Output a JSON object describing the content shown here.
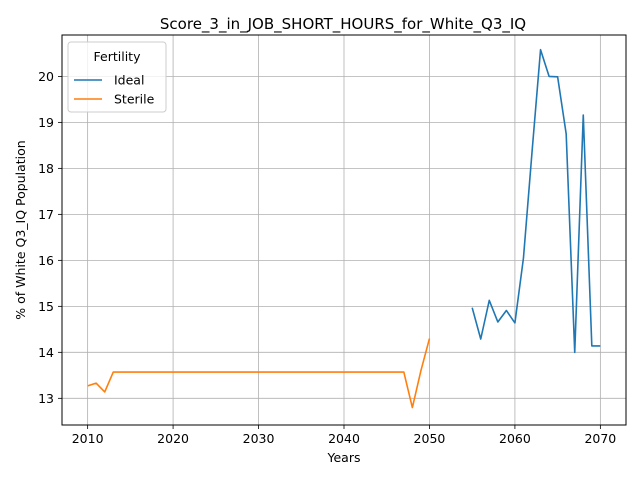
{
  "chart_data": {
    "type": "line",
    "title": "Score_3_in_JOB_SHORT_HOURS_for_White_Q3_IQ",
    "xlabel": "Years",
    "ylabel": "% of White Q3_IQ Population",
    "xlim": [
      2007,
      2073
    ],
    "ylim": [
      12.42,
      20.9
    ],
    "xticks": [
      2010,
      2020,
      2030,
      2040,
      2050,
      2060,
      2070
    ],
    "yticks": [
      13,
      14,
      15,
      16,
      17,
      18,
      19,
      20
    ],
    "grid": true,
    "legend": {
      "title": "Fertility",
      "placement": "top-left"
    },
    "series": [
      {
        "name": "Ideal",
        "color": "#1f77b4",
        "x": [
          2055,
          2056,
          2057,
          2058,
          2059,
          2060,
          2061,
          2062,
          2063,
          2064,
          2065,
          2066,
          2067,
          2068,
          2069,
          2070
        ],
        "y": [
          14.97,
          14.29,
          15.13,
          14.66,
          14.91,
          14.64,
          16.05,
          18.35,
          20.58,
          20.0,
          19.99,
          18.75,
          14.0,
          19.16,
          14.14,
          14.14
        ]
      },
      {
        "name": "Sterile",
        "color": "#ff7f0e",
        "x": [
          2010,
          2011,
          2012,
          2013,
          2014,
          2015,
          2016,
          2017,
          2018,
          2019,
          2020,
          2021,
          2022,
          2023,
          2024,
          2025,
          2026,
          2027,
          2028,
          2029,
          2030,
          2031,
          2032,
          2033,
          2034,
          2035,
          2036,
          2037,
          2038,
          2039,
          2040,
          2041,
          2042,
          2043,
          2044,
          2045,
          2046,
          2047,
          2048,
          2049,
          2050
        ],
        "y": [
          13.27,
          13.33,
          13.14,
          13.57,
          13.57,
          13.57,
          13.57,
          13.57,
          13.57,
          13.57,
          13.57,
          13.57,
          13.57,
          13.57,
          13.57,
          13.57,
          13.57,
          13.57,
          13.57,
          13.57,
          13.57,
          13.57,
          13.57,
          13.57,
          13.57,
          13.57,
          13.57,
          13.57,
          13.57,
          13.57,
          13.57,
          13.57,
          13.57,
          13.57,
          13.57,
          13.57,
          13.57,
          13.57,
          12.8,
          13.6,
          14.3
        ]
      }
    ]
  }
}
